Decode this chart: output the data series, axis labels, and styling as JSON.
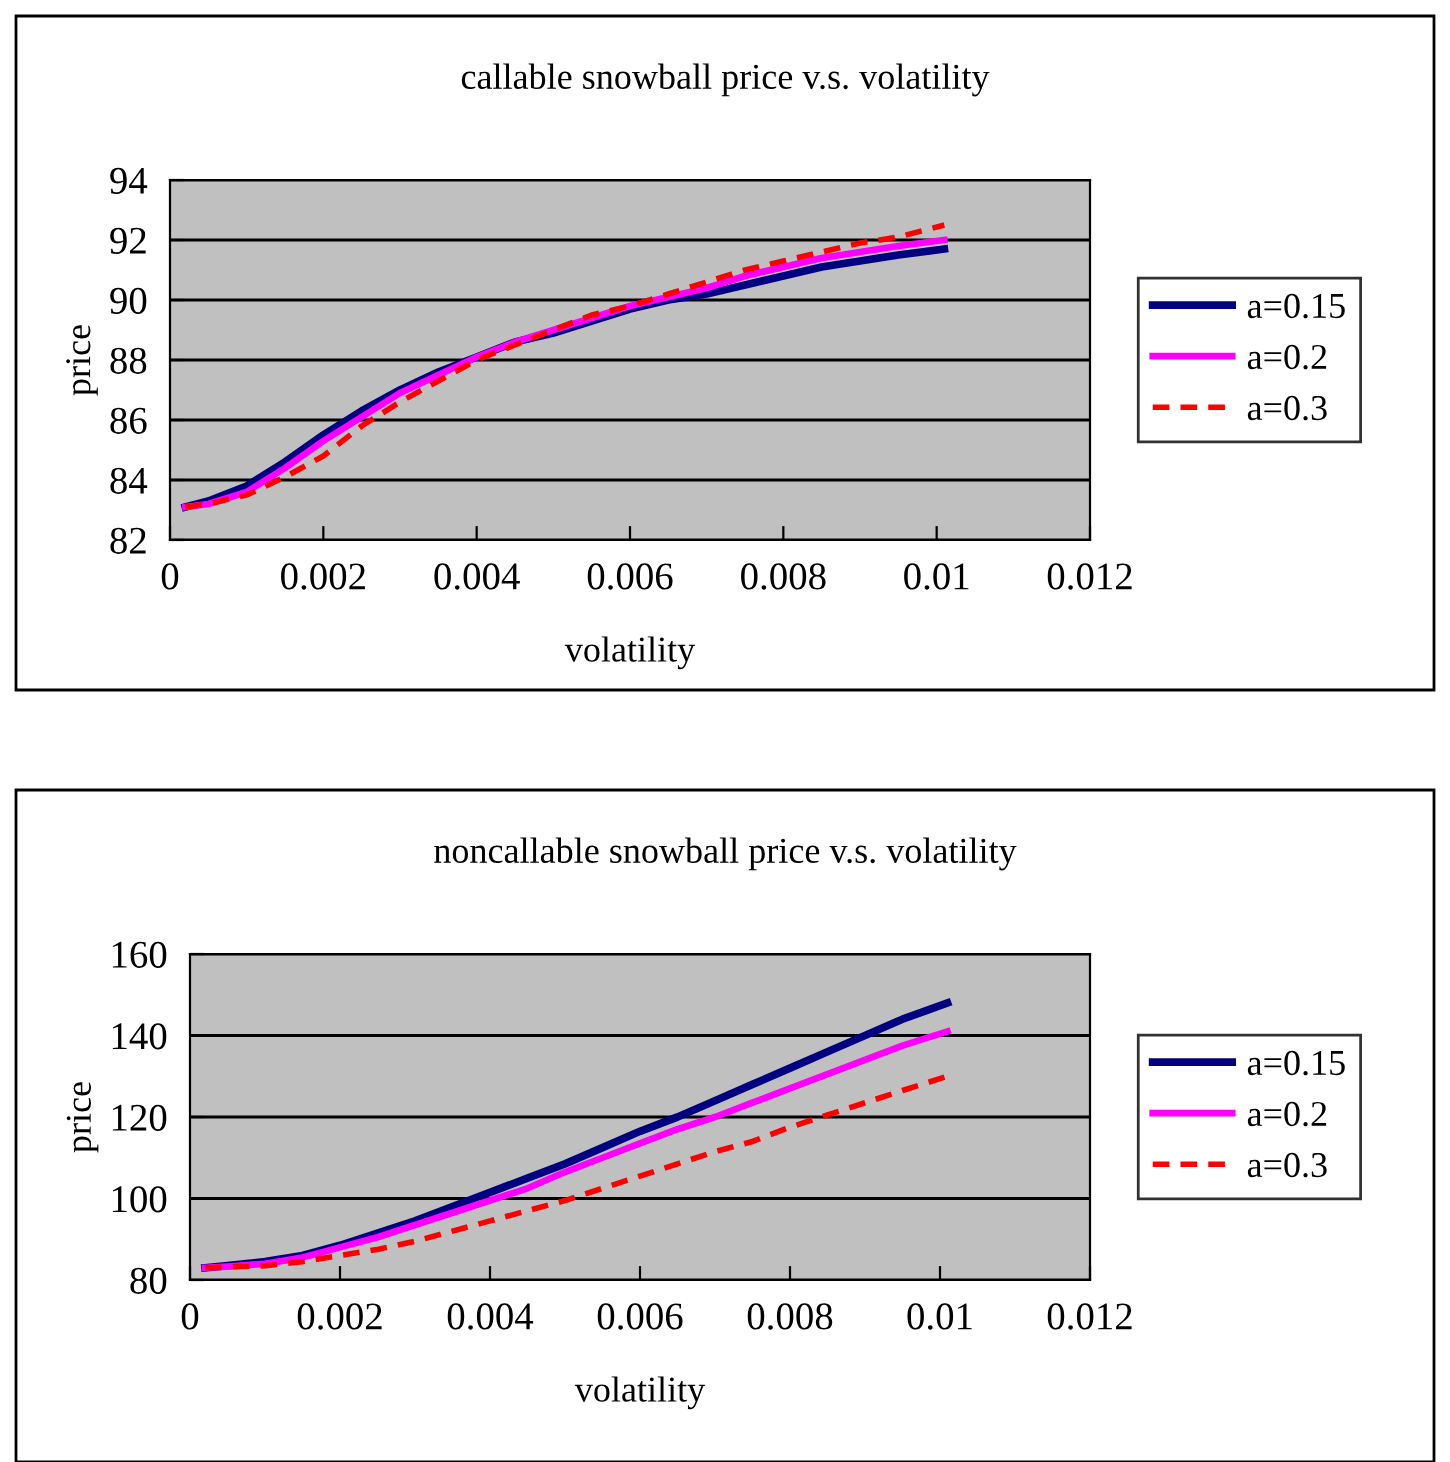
{
  "chart_data": [
    {
      "type": "line",
      "title": "callable snowball price v.s. volatility",
      "xlabel": "volatility",
      "ylabel": "price",
      "x": [
        0.0002,
        0.0005,
        0.001,
        0.0015,
        0.002,
        0.0025,
        0.003,
        0.0035,
        0.004,
        0.0045,
        0.005,
        0.0055,
        0.006,
        0.0065,
        0.007,
        0.0075,
        0.008,
        0.0085,
        0.009,
        0.0095,
        0.0101
      ],
      "series": [
        {
          "name": "a=0.15",
          "color": "#000080",
          "line_style": "solid",
          "values": [
            83.1,
            83.3,
            83.8,
            84.6,
            85.5,
            86.3,
            87.0,
            87.6,
            88.1,
            88.6,
            88.9,
            89.3,
            89.7,
            90.0,
            90.2,
            90.5,
            90.8,
            91.1,
            91.3,
            91.5,
            91.7
          ]
        },
        {
          "name": "a=0.2",
          "color": "#ff00ff",
          "line_style": "solid",
          "values": [
            83.1,
            83.2,
            83.6,
            84.4,
            85.3,
            86.1,
            86.9,
            87.5,
            88.1,
            88.6,
            89.0,
            89.4,
            89.8,
            90.1,
            90.4,
            90.8,
            91.1,
            91.4,
            91.6,
            91.8,
            92.0
          ]
        },
        {
          "name": "a=0.3",
          "color": "#ff0000",
          "line_style": "dashed",
          "values": [
            83.1,
            83.2,
            83.5,
            84.1,
            84.8,
            85.8,
            86.6,
            87.3,
            88.0,
            88.5,
            89.0,
            89.5,
            89.8,
            90.2,
            90.6,
            91.0,
            91.3,
            91.6,
            91.9,
            92.1,
            92.5
          ]
        }
      ],
      "xlim": [
        0,
        0.012
      ],
      "xticks": [
        0,
        0.002,
        0.004,
        0.006,
        0.008,
        0.01,
        0.012
      ],
      "ylim": [
        82,
        94
      ],
      "yticks": [
        82,
        84,
        86,
        88,
        90,
        92,
        94
      ],
      "grid": "y",
      "legend": "right"
    },
    {
      "type": "line",
      "title": "noncallable snowball price v.s. volatility",
      "xlabel": "volatility",
      "ylabel": "price",
      "x": [
        0.0002,
        0.0005,
        0.001,
        0.0015,
        0.002,
        0.0025,
        0.003,
        0.0035,
        0.004,
        0.0045,
        0.005,
        0.0055,
        0.006,
        0.0065,
        0.007,
        0.0075,
        0.008,
        0.0085,
        0.009,
        0.0095,
        0.0101
      ],
      "series": [
        {
          "name": "a=0.15",
          "color": "#000080",
          "line_style": "solid",
          "values": [
            83,
            83.5,
            84.5,
            86,
            88.5,
            91.5,
            94.5,
            98,
            101.5,
            105,
            108.5,
            112.5,
            116.5,
            120,
            124,
            128,
            132,
            136,
            140,
            144,
            148
          ]
        },
        {
          "name": "a=0.2",
          "color": "#ff00ff",
          "line_style": "solid",
          "values": [
            83,
            83.3,
            84,
            85.5,
            88,
            90.5,
            93.5,
            96.5,
            99.5,
            102.5,
            106.5,
            110,
            113.5,
            117,
            120,
            123.5,
            127,
            130.5,
            134,
            137.5,
            141
          ]
        },
        {
          "name": "a=0.3",
          "color": "#ff0000",
          "line_style": "dashed",
          "values": [
            83,
            83.2,
            83.5,
            84.5,
            86,
            87.5,
            89.5,
            92,
            94.5,
            97,
            99.5,
            102.5,
            105.5,
            108.5,
            111.5,
            114,
            117.5,
            120.5,
            123.5,
            126.5,
            130
          ]
        }
      ],
      "xlim": [
        0,
        0.012
      ],
      "xticks": [
        0,
        0.002,
        0.004,
        0.006,
        0.008,
        0.01,
        0.012
      ],
      "ylim": [
        80,
        160
      ],
      "yticks": [
        80,
        100,
        120,
        140,
        160
      ],
      "grid": "y",
      "legend": "right"
    }
  ]
}
